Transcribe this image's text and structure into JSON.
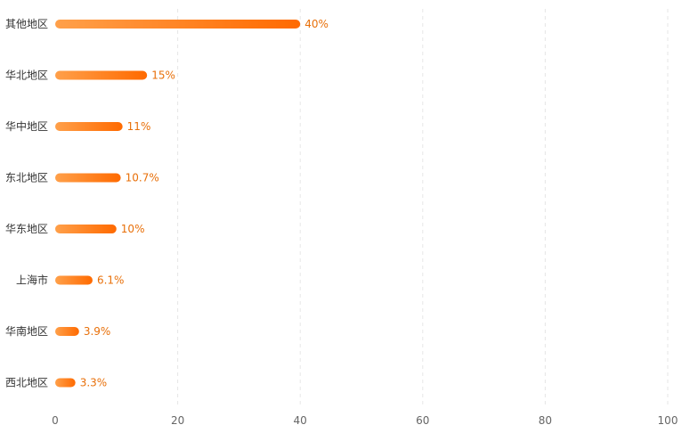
{
  "chart_data": {
    "type": "bar",
    "orientation": "horizontal",
    "categories": [
      "其他地区",
      "华北地区",
      "华中地区",
      "东北地区",
      "华东地区",
      "上海市",
      "华南地区",
      "西北地区"
    ],
    "values": [
      40,
      15,
      11,
      10.7,
      10,
      6.1,
      3.9,
      3.3
    ],
    "value_labels": [
      "40%",
      "15%",
      "11%",
      "10.7%",
      "10%",
      "6.1%",
      "3.9%",
      "3.3%"
    ],
    "xlim": [
      0,
      100
    ],
    "x_ticks": [
      0,
      20,
      40,
      60,
      80,
      100
    ],
    "title": "",
    "xlabel": "",
    "ylabel": "",
    "grid": "vertical dashed",
    "legend": "none",
    "colors": {
      "bar_start": "#ffa04a",
      "bar_end": "#ff6a00",
      "value_label": "#e8700a",
      "grid": "#e6e6e6"
    }
  }
}
